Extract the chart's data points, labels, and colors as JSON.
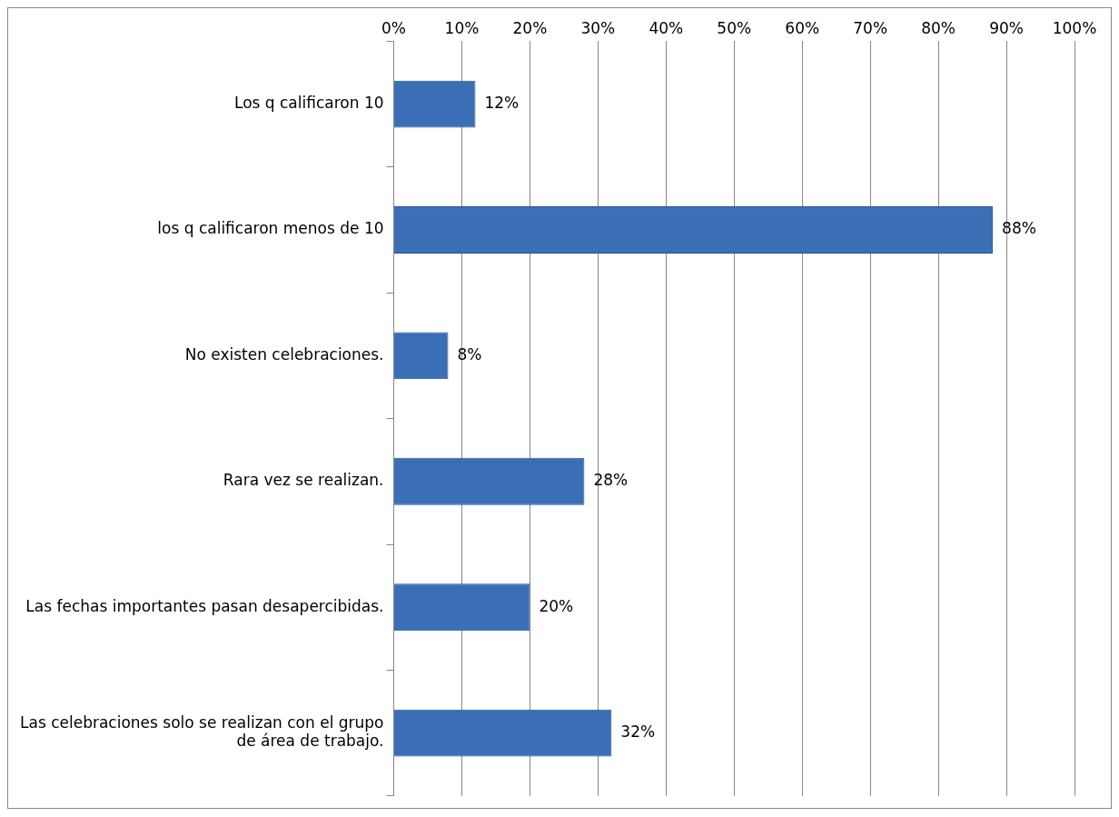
{
  "chart_data": {
    "type": "bar",
    "orientation": "horizontal",
    "categories": [
      "Los q calificaron 10",
      "los q calificaron menos de 10",
      "No existen celebraciones.",
      "Rara vez se realizan.",
      "Las fechas importantes pasan desapercibidas.",
      "Las celebraciones solo se realizan con el grupo de área de trabajo."
    ],
    "values": [
      12,
      88,
      8,
      28,
      20,
      32
    ],
    "value_labels": [
      "12%",
      "88%",
      "8%",
      "28%",
      "20%",
      "32%"
    ],
    "color": "#3a6fb5",
    "xlim": [
      0,
      100
    ],
    "xticks": [
      {
        "value": 0,
        "label": "0%"
      },
      {
        "value": 10,
        "label": "10%"
      },
      {
        "value": 20,
        "label": "20%"
      },
      {
        "value": 30,
        "label": "30%"
      },
      {
        "value": 40,
        "label": "40%"
      },
      {
        "value": 50,
        "label": "50%"
      },
      {
        "value": 60,
        "label": "60%"
      },
      {
        "value": 70,
        "label": "70%"
      },
      {
        "value": 80,
        "label": "80%"
      },
      {
        "value": 90,
        "label": "90%"
      },
      {
        "value": 100,
        "label": "100%"
      }
    ],
    "grid": "x",
    "legend": false
  }
}
